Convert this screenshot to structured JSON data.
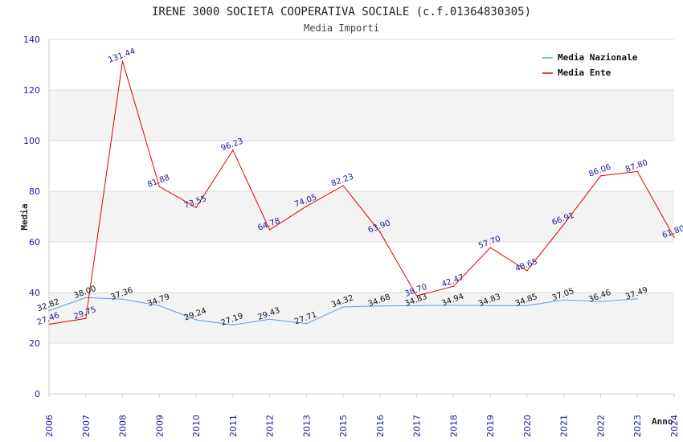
{
  "chart_data": {
    "type": "line",
    "title": "IRENE 3000 SOCIETA COOPERATIVA SOCIALE (c.f.01364830305)",
    "subtitle": "Media Importi",
    "xlabel": "Anno",
    "ylabel": "Media",
    "ylim": [
      0,
      140
    ],
    "yticks": [
      0,
      20,
      40,
      60,
      80,
      100,
      120,
      140
    ],
    "categories": [
      "2006",
      "2007",
      "2008",
      "2009",
      "2010",
      "2011",
      "2012",
      "2013",
      "2015",
      "2016",
      "2017",
      "2018",
      "2019",
      "2020",
      "2021",
      "2022",
      "2023",
      "2024"
    ],
    "legend_position": "top-right",
    "series": [
      {
        "name": "Media Nazionale",
        "color": "#5aa0e6",
        "values": [
          32.82,
          38.0,
          37.36,
          34.79,
          29.24,
          27.19,
          29.43,
          27.71,
          34.32,
          34.68,
          34.83,
          34.94,
          34.83,
          34.85,
          37.05,
          36.46,
          37.49,
          null
        ],
        "labels": [
          "32.82",
          "38.00",
          "37.36",
          "34.79",
          "29.24",
          "27.19",
          "29.43",
          "27.71",
          "34.32",
          "34.68",
          "34.83",
          "34.94",
          "34.83",
          "34.85",
          "37.05",
          "36.46",
          "37.49",
          null
        ]
      },
      {
        "name": "Media Ente",
        "color": "#e00000",
        "values": [
          27.46,
          29.75,
          131.44,
          81.88,
          73.55,
          96.23,
          64.78,
          74.05,
          82.23,
          63.9,
          38.7,
          42.47,
          57.7,
          48.65,
          66.91,
          86.06,
          87.8,
          61.8
        ],
        "labels": [
          "27.46",
          "29.75",
          "131.44",
          "81.88",
          "73.55",
          "96.23",
          "64.78",
          "74.05",
          "82.23",
          "63.90",
          "38.70",
          "42.47",
          "57.70",
          "48.65",
          "66.91",
          "86.06",
          "87.80",
          "61.80"
        ]
      }
    ]
  }
}
